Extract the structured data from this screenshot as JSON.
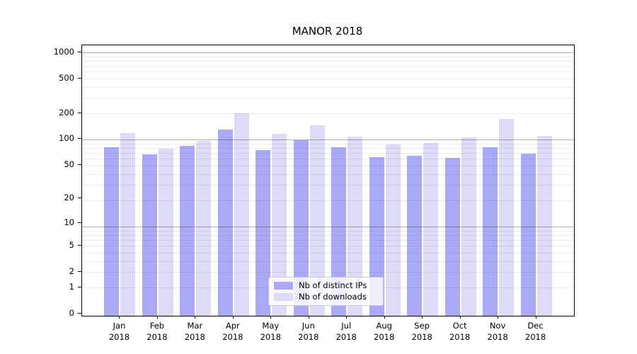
{
  "title": "MANOR 2018",
  "chart_data": {
    "type": "bar",
    "title": "MANOR 2018",
    "categories": [
      "Jan",
      "Feb",
      "Mar",
      "Apr",
      "May",
      "Jun",
      "Jul",
      "Aug",
      "Sep",
      "Oct",
      "Nov",
      "Dec"
    ],
    "x_tick_year_line": "2018",
    "series": [
      {
        "name": "Nb of distinct IPs",
        "color": "#a9a9f5",
        "values": [
          81,
          67,
          84,
          130,
          75,
          98,
          80,
          62,
          64,
          60,
          81,
          68
        ]
      },
      {
        "name": "Nb of downloads",
        "color": "#dcdcf8",
        "values": [
          118,
          77,
          96,
          200,
          115,
          145,
          106,
          86,
          90,
          104,
          170,
          109
        ]
      }
    ],
    "yticks": [
      0,
      1,
      2,
      5,
      10,
      20,
      50,
      100,
      200,
      500,
      1000
    ],
    "ylim": [
      0,
      1200
    ],
    "yscale": "log(value+1), 0 at baseline",
    "xlabel": "",
    "ylabel": "",
    "grid": "major and minor horizontal gridlines drawn over bars",
    "legend_position": "lower center inside plot"
  },
  "colors": {
    "bar_distinct_ips": "#a9a9f5",
    "bar_downloads": "#dcdcf8",
    "grid_major": "rgba(0,0,0,0.30)",
    "grid_minor": "rgba(0,0,0,0.075)",
    "spine": "#000000",
    "background": "#ffffff"
  }
}
